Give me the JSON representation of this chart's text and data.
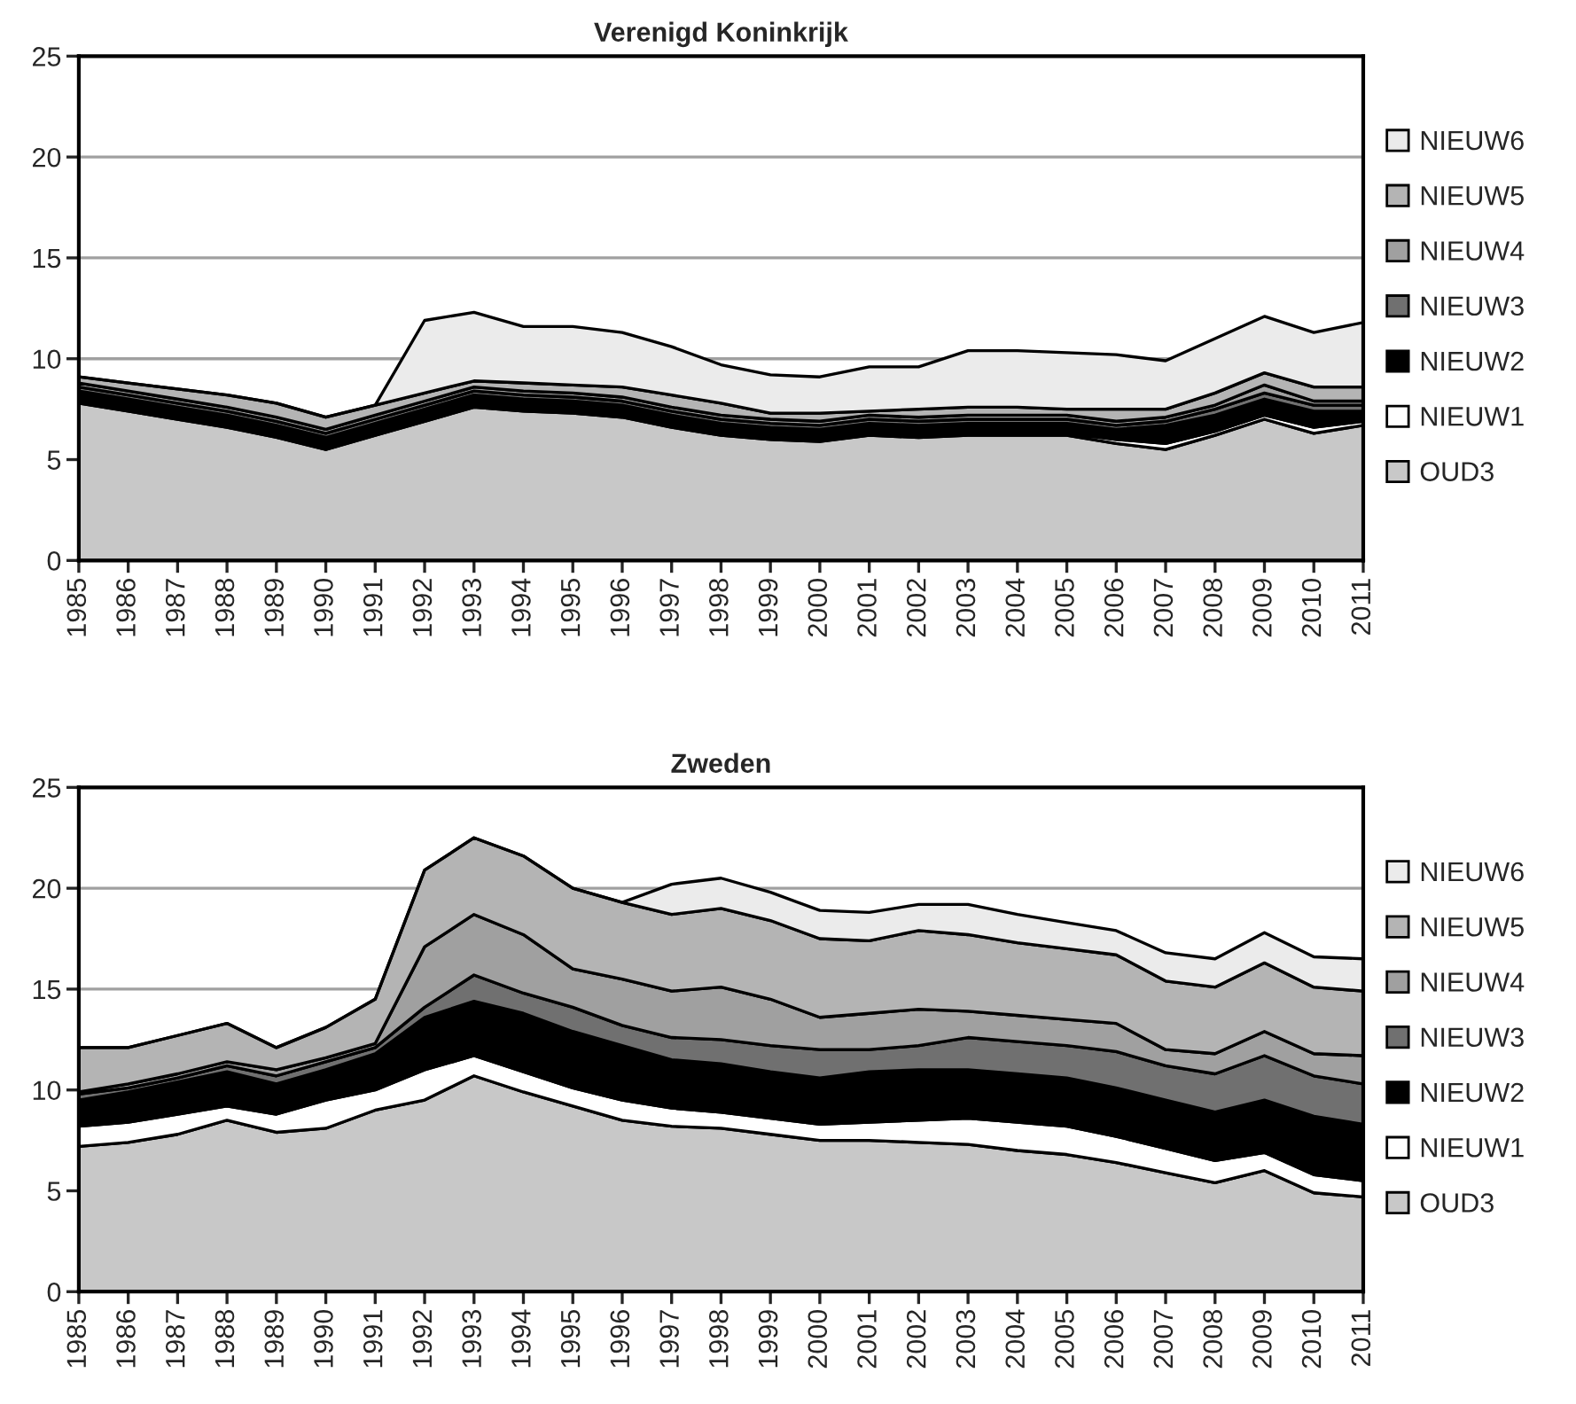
{
  "chart_data": [
    {
      "type": "area",
      "stacked": true,
      "title": "Verenigd Koninkrijk",
      "x": [
        1985,
        1986,
        1987,
        1988,
        1989,
        1990,
        1991,
        1992,
        1993,
        1994,
        1995,
        1996,
        1997,
        1998,
        1999,
        2000,
        2001,
        2002,
        2003,
        2004,
        2005,
        2006,
        2007,
        2008,
        2009,
        2010,
        2011
      ],
      "xlim": [
        1985,
        2011
      ],
      "xticks": [
        1985,
        1986,
        1987,
        1988,
        1989,
        1990,
        1991,
        1992,
        1993,
        1994,
        1995,
        1996,
        1997,
        1998,
        1999,
        2000,
        2001,
        2002,
        2003,
        2004,
        2005,
        2006,
        2007,
        2008,
        2009,
        2010,
        2011
      ],
      "ylim": [
        0,
        25
      ],
      "yticks": [
        0,
        5,
        10,
        15,
        20,
        25
      ],
      "grid": "y",
      "legend": "right",
      "series": [
        {
          "name": "OUD3",
          "color": "#c8c8c8",
          "values": [
            7.8,
            7.4,
            7.0,
            6.6,
            6.1,
            5.5,
            6.2,
            6.9,
            7.6,
            7.4,
            7.3,
            7.1,
            6.6,
            6.2,
            6.0,
            5.9,
            6.2,
            6.1,
            6.2,
            6.2,
            6.2,
            5.8,
            5.5,
            6.2,
            7.0,
            6.3,
            6.7
          ]
        },
        {
          "name": "NIEUW1",
          "color": "#ffffff",
          "values": [
            0.1,
            0.1,
            0.1,
            0.1,
            0.1,
            0.1,
            0.1,
            0.1,
            0.1,
            0.1,
            0.1,
            0.1,
            0.1,
            0.1,
            0.1,
            0.1,
            0.1,
            0.1,
            0.1,
            0.1,
            0.1,
            0.2,
            0.3,
            0.2,
            0.2,
            0.3,
            0.2
          ]
        },
        {
          "name": "NIEUW2",
          "color": "#000000",
          "values": [
            0.5,
            0.5,
            0.5,
            0.5,
            0.5,
            0.5,
            0.5,
            0.5,
            0.5,
            0.5,
            0.5,
            0.5,
            0.5,
            0.5,
            0.5,
            0.5,
            0.5,
            0.5,
            0.5,
            0.5,
            0.5,
            0.5,
            0.9,
            0.8,
            0.8,
            0.8,
            0.5
          ]
        },
        {
          "name": "NIEUW3",
          "color": "#707070",
          "values": [
            0.2,
            0.2,
            0.2,
            0.2,
            0.2,
            0.2,
            0.2,
            0.2,
            0.2,
            0.2,
            0.2,
            0.2,
            0.2,
            0.2,
            0.2,
            0.2,
            0.2,
            0.2,
            0.2,
            0.2,
            0.2,
            0.2,
            0.2,
            0.3,
            0.3,
            0.3,
            0.3
          ]
        },
        {
          "name": "NIEUW4",
          "color": "#a0a0a0",
          "values": [
            0.2,
            0.2,
            0.2,
            0.2,
            0.2,
            0.2,
            0.2,
            0.2,
            0.2,
            0.2,
            0.2,
            0.2,
            0.2,
            0.2,
            0.2,
            0.2,
            0.2,
            0.2,
            0.2,
            0.2,
            0.2,
            0.2,
            0.2,
            0.2,
            0.4,
            0.2,
            0.2
          ]
        },
        {
          "name": "NIEUW5",
          "color": "#b4b4b4",
          "values": [
            0.3,
            0.4,
            0.5,
            0.6,
            0.7,
            0.6,
            0.5,
            0.4,
            0.3,
            0.4,
            0.4,
            0.5,
            0.6,
            0.6,
            0.3,
            0.4,
            0.2,
            0.4,
            0.4,
            0.4,
            0.3,
            0.6,
            0.4,
            0.6,
            0.6,
            0.7,
            0.7
          ]
        },
        {
          "name": "NIEUW6",
          "color": "#ebebeb",
          "values": [
            0,
            0,
            0,
            0,
            0,
            0,
            0,
            3.6,
            3.4,
            2.8,
            2.9,
            2.7,
            2.4,
            1.9,
            1.9,
            1.8,
            2.2,
            2.1,
            2.8,
            2.8,
            2.8,
            2.7,
            2.4,
            2.7,
            2.8,
            2.7,
            3.2
          ]
        }
      ]
    },
    {
      "type": "area",
      "stacked": true,
      "title": "Zweden",
      "x": [
        1985,
        1986,
        1987,
        1988,
        1989,
        1990,
        1991,
        1992,
        1993,
        1994,
        1995,
        1996,
        1997,
        1998,
        1999,
        2000,
        2001,
        2002,
        2003,
        2004,
        2005,
        2006,
        2007,
        2008,
        2009,
        2010,
        2011
      ],
      "xlim": [
        1985,
        2011
      ],
      "xticks": [
        1985,
        1986,
        1987,
        1988,
        1989,
        1990,
        1991,
        1992,
        1993,
        1994,
        1995,
        1996,
        1997,
        1998,
        1999,
        2000,
        2001,
        2002,
        2003,
        2004,
        2005,
        2006,
        2007,
        2008,
        2009,
        2010,
        2011
      ],
      "ylim": [
        0,
        25
      ],
      "yticks": [
        0,
        5,
        10,
        15,
        20,
        25
      ],
      "grid": "y",
      "legend": "right",
      "series": [
        {
          "name": "OUD3",
          "color": "#c8c8c8",
          "values": [
            7.2,
            7.4,
            7.8,
            8.5,
            7.9,
            8.1,
            9.0,
            9.5,
            10.7,
            9.9,
            9.2,
            8.5,
            8.2,
            8.1,
            7.8,
            7.5,
            7.5,
            7.4,
            7.3,
            7.0,
            6.8,
            6.4,
            5.9,
            5.4,
            6.0,
            4.9,
            4.7
          ]
        },
        {
          "name": "NIEUW1",
          "color": "#ffffff",
          "values": [
            1.0,
            1.0,
            1.0,
            0.7,
            0.9,
            1.4,
            1.0,
            1.5,
            1.0,
            1.0,
            0.9,
            1.0,
            0.9,
            0.8,
            0.8,
            0.8,
            0.9,
            1.1,
            1.3,
            1.4,
            1.4,
            1.3,
            1.2,
            1.1,
            0.9,
            0.9,
            0.8
          ]
        },
        {
          "name": "NIEUW2",
          "color": "#000000",
          "values": [
            1.3,
            1.5,
            1.6,
            1.7,
            1.5,
            1.5,
            1.8,
            2.6,
            2.7,
            2.9,
            2.8,
            2.7,
            2.4,
            2.4,
            2.3,
            2.3,
            2.5,
            2.5,
            2.4,
            2.4,
            2.4,
            2.4,
            2.4,
            2.4,
            2.6,
            2.9,
            2.8
          ]
        },
        {
          "name": "NIEUW3",
          "color": "#707070",
          "values": [
            0.3,
            0.2,
            0.2,
            0.3,
            0.4,
            0.4,
            0.3,
            0.5,
            1.3,
            1.0,
            1.2,
            1.0,
            1.1,
            1.2,
            1.3,
            1.4,
            1.1,
            1.2,
            1.6,
            1.6,
            1.6,
            1.8,
            1.7,
            1.9,
            2.2,
            2.0,
            2.0
          ]
        },
        {
          "name": "NIEUW4",
          "color": "#a0a0a0",
          "values": [
            0.1,
            0.2,
            0.2,
            0.2,
            0.3,
            0.2,
            0.2,
            3.0,
            3.0,
            2.9,
            1.9,
            2.3,
            2.3,
            2.6,
            2.3,
            1.6,
            1.8,
            1.8,
            1.3,
            1.3,
            1.3,
            1.4,
            0.8,
            1.0,
            1.2,
            1.1,
            1.4
          ]
        },
        {
          "name": "NIEUW5",
          "color": "#b4b4b4",
          "values": [
            2.2,
            1.8,
            1.9,
            1.9,
            1.1,
            1.5,
            2.2,
            3.8,
            3.8,
            3.9,
            4.0,
            3.8,
            3.8,
            3.9,
            3.9,
            3.9,
            3.6,
            3.9,
            3.8,
            3.6,
            3.5,
            3.4,
            3.4,
            3.3,
            3.4,
            3.3,
            3.2
          ]
        },
        {
          "name": "NIEUW6",
          "color": "#ebebeb",
          "values": [
            0,
            0,
            0,
            0,
            0,
            0,
            0,
            0,
            0,
            0,
            0,
            0,
            1.5,
            1.5,
            1.4,
            1.4,
            1.4,
            1.3,
            1.5,
            1.4,
            1.3,
            1.2,
            1.4,
            1.4,
            1.5,
            1.5,
            1.6
          ]
        }
      ]
    }
  ]
}
